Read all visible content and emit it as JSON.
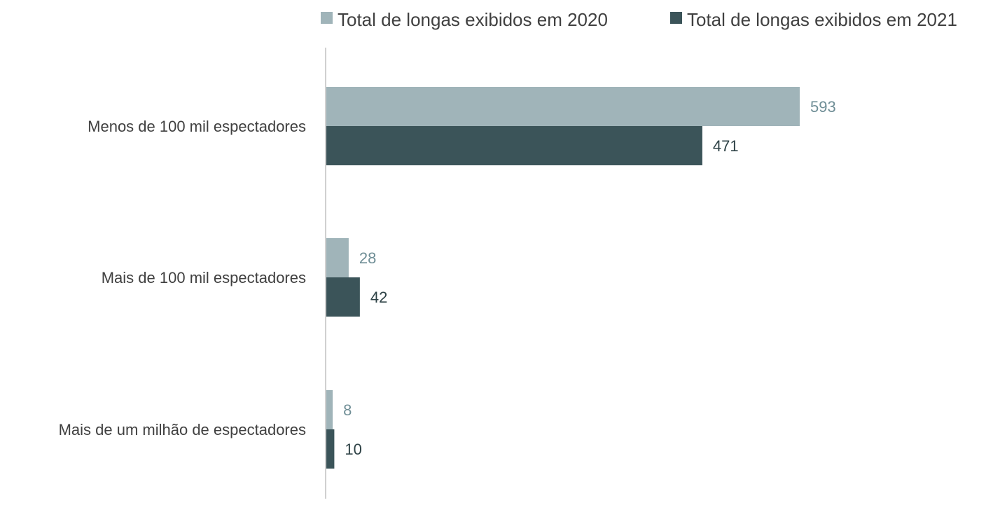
{
  "chart_data": {
    "type": "bar",
    "orientation": "horizontal",
    "categories": [
      "Menos de 100 mil espectadores",
      "Mais de 100 mil espectadores",
      "Mais de um milhão de espectadores"
    ],
    "series": [
      {
        "name": "Total de longas exibidos em 2020",
        "values": [
          593,
          28,
          8
        ],
        "color": "#A0B4B9",
        "label_color": "#6F8E96"
      },
      {
        "name": "Total de longas exibidos em 2021",
        "values": [
          471,
          42,
          10
        ],
        "color": "#3B5459",
        "label_color": "#2E4246"
      }
    ],
    "xlim": [
      0,
      600
    ],
    "grid": false,
    "legend_position": "top-right",
    "axis_color": "#D0D0D0"
  }
}
